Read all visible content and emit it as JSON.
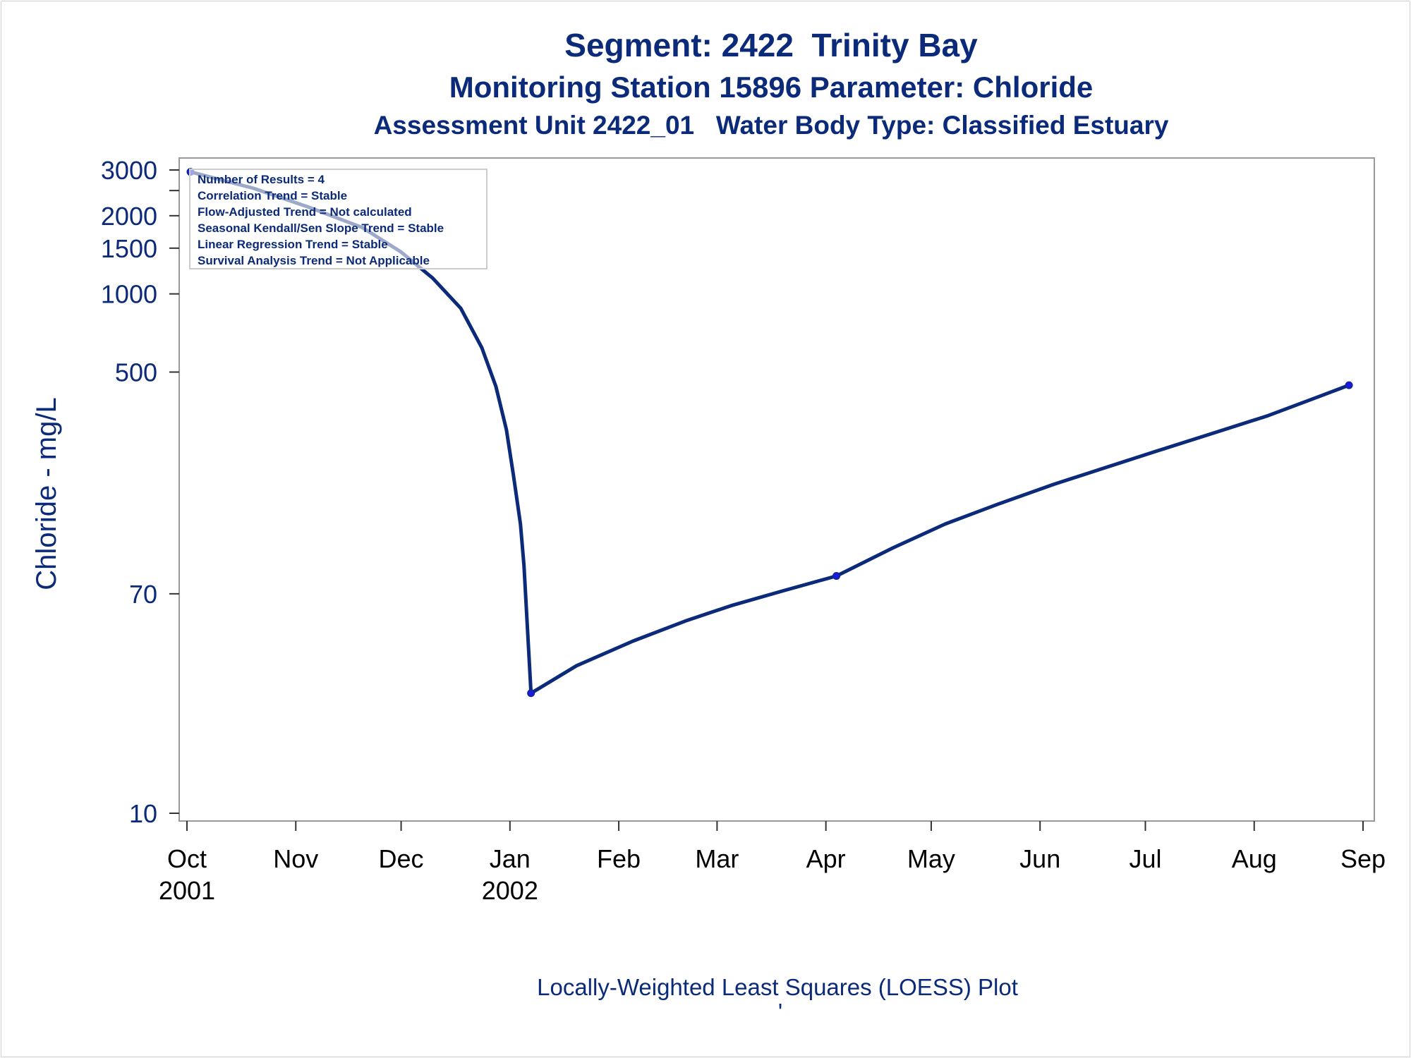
{
  "chart_data": {
    "type": "line",
    "title": "Segment: 2422  Trinity Bay",
    "subtitle": "Monitoring Station 15896 Parameter: Chloride",
    "subtitle2": "Assessment Unit 2422_01   Water Body Type: Classified Estuary",
    "ylabel": "Chloride - mg/L",
    "xlabel": "Locally-Weighted Least Squares (LOESS) Plot",
    "footnote_mark": "'",
    "yscale": "log",
    "ylim": [
      10,
      3000
    ],
    "yticks": [
      {
        "value": 10,
        "label": "10"
      },
      {
        "value": 70,
        "label": "70"
      },
      {
        "value": 500,
        "label": "500"
      },
      {
        "value": 1000,
        "label": "1000"
      },
      {
        "value": 1500,
        "label": "1500"
      },
      {
        "value": 2000,
        "label": "2000"
      },
      {
        "value": 2500,
        "label": ""
      },
      {
        "value": 3000,
        "label": "3000"
      }
    ],
    "xlim": [
      "2001-10-01",
      "2002-09-01"
    ],
    "xticks": [
      {
        "date": "2001-10-01",
        "label": "Oct",
        "year": "2001"
      },
      {
        "date": "2001-11-01",
        "label": "Nov",
        "year": ""
      },
      {
        "date": "2001-12-01",
        "label": "Dec",
        "year": ""
      },
      {
        "date": "2002-01-01",
        "label": "Jan",
        "year": "2002"
      },
      {
        "date": "2002-02-01",
        "label": "Feb",
        "year": ""
      },
      {
        "date": "2002-03-01",
        "label": "Mar",
        "year": ""
      },
      {
        "date": "2002-04-01",
        "label": "Apr",
        "year": ""
      },
      {
        "date": "2002-05-01",
        "label": "May",
        "year": ""
      },
      {
        "date": "2002-06-01",
        "label": "Jun",
        "year": ""
      },
      {
        "date": "2002-07-01",
        "label": "Jul",
        "year": ""
      },
      {
        "date": "2002-08-01",
        "label": "Aug",
        "year": ""
      },
      {
        "date": "2002-09-01",
        "label": "Sep",
        "year": ""
      }
    ],
    "points": [
      {
        "date": "2001-10-02",
        "value": 2950
      },
      {
        "date": "2002-01-07",
        "value": 29
      },
      {
        "date": "2002-04-04",
        "value": 82
      },
      {
        "date": "2002-08-28",
        "value": 445
      }
    ],
    "loess": [
      {
        "date": "2001-10-02",
        "value": 2950
      },
      {
        "date": "2001-10-20",
        "value": 2550
      },
      {
        "date": "2001-11-05",
        "value": 2150
      },
      {
        "date": "2001-11-20",
        "value": 1800
      },
      {
        "date": "2001-12-01",
        "value": 1450
      },
      {
        "date": "2001-12-10",
        "value": 1150
      },
      {
        "date": "2001-12-18",
        "value": 880
      },
      {
        "date": "2001-12-24",
        "value": 620
      },
      {
        "date": "2001-12-28",
        "value": 440
      },
      {
        "date": "2001-12-31",
        "value": 300
      },
      {
        "date": "2002-01-02",
        "value": 200
      },
      {
        "date": "2002-01-04",
        "value": 130
      },
      {
        "date": "2002-01-05",
        "value": 90
      },
      {
        "date": "2002-01-07",
        "value": 29
      },
      {
        "date": "2002-01-20",
        "value": 37
      },
      {
        "date": "2002-02-05",
        "value": 46
      },
      {
        "date": "2002-02-20",
        "value": 55
      },
      {
        "date": "2002-03-05",
        "value": 63
      },
      {
        "date": "2002-03-20",
        "value": 72
      },
      {
        "date": "2002-04-04",
        "value": 82
      },
      {
        "date": "2002-04-20",
        "value": 105
      },
      {
        "date": "2002-05-05",
        "value": 130
      },
      {
        "date": "2002-05-20",
        "value": 155
      },
      {
        "date": "2002-06-05",
        "value": 185
      },
      {
        "date": "2002-06-20",
        "value": 215
      },
      {
        "date": "2002-07-05",
        "value": 250
      },
      {
        "date": "2002-07-20",
        "value": 290
      },
      {
        "date": "2002-08-05",
        "value": 340
      },
      {
        "date": "2002-08-20",
        "value": 405
      },
      {
        "date": "2002-08-28",
        "value": 445
      }
    ],
    "stats": [
      "Number of Results = 4",
      "Correlation Trend = Stable",
      "Flow-Adjusted Trend = Not calculated",
      "Seasonal Kendall/Sen Slope Trend = Stable",
      "Linear Regression Trend = Stable",
      "Survival Analysis Trend = Not Applicable"
    ],
    "colors": {
      "line": "#0b2a79",
      "marker": "#1a1adb",
      "text": "#0b2a79",
      "axis": "#888888"
    }
  }
}
